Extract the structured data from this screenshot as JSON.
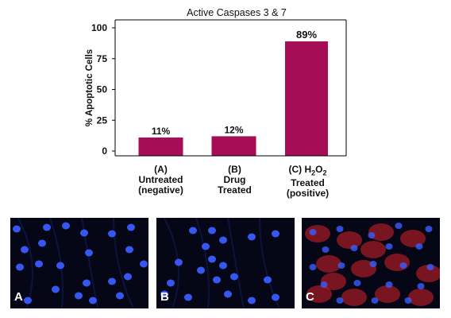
{
  "chart_data": {
    "type": "bar",
    "title": "Active Caspases 3 & 7",
    "ylabel": "% Apoptotic Cells",
    "xlabel": "",
    "ylim": [
      0,
      100
    ],
    "yticks": [
      "0",
      "25",
      "50",
      "75",
      "100"
    ],
    "categories": [
      "(A) Untreated (negative)",
      "(B) Drug Treated",
      "(C) H2O2 Treated (positive)"
    ],
    "values": [
      11,
      12,
      89
    ],
    "data_labels": [
      "11%",
      "12%",
      "89%"
    ],
    "bar_color": "#a50d57",
    "grid": false
  },
  "category_labels": {
    "a": {
      "line1": "(A)",
      "line2": "Untreated",
      "line3": "(negative)"
    },
    "b": {
      "line1": "(B)",
      "line2": "Drug",
      "line3": "Treated"
    },
    "c": {
      "line1": "(C) H",
      "sub1": "2",
      "mid": "O",
      "sub2": "2",
      "line2": "Treated",
      "line3": "(positive)"
    }
  },
  "micrographs": {
    "a": {
      "label": "A",
      "stain": "blue nuclei"
    },
    "b": {
      "label": "B",
      "stain": "blue nuclei"
    },
    "c": {
      "label": "C",
      "stain": "blue nuclei with red caspase signal"
    }
  },
  "colors": {
    "nuclei": "#3a5cff",
    "caspase": "#d8202a",
    "background": "#050716"
  }
}
